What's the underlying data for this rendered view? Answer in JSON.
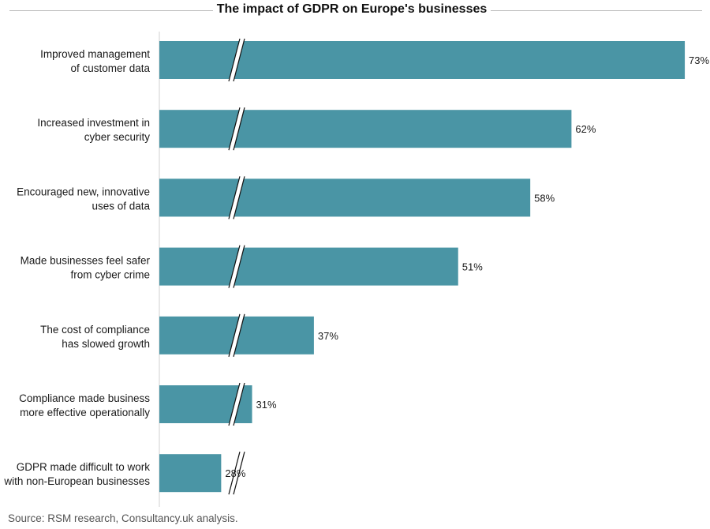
{
  "chart_data": {
    "type": "bar",
    "orientation": "horizontal",
    "title": "The impact of GDPR on Europe's businesses",
    "categories": [
      [
        "Improved management",
        "of customer data"
      ],
      [
        "Increased investment in",
        "cyber security"
      ],
      [
        "Encouraged new, innovative",
        "uses of data"
      ],
      [
        "Made businesses feel safer",
        "from cyber crime"
      ],
      [
        "The cost of compliance",
        "has slowed growth"
      ],
      [
        "Compliance made business",
        "more effective operationally"
      ],
      [
        "GDPR made difficult to work",
        "with non-European businesses"
      ]
    ],
    "values": [
      73,
      62,
      58,
      51,
      37,
      31,
      28
    ],
    "value_labels": [
      "73%",
      "62%",
      "58%",
      "51%",
      "37%",
      "31%",
      "28%"
    ],
    "axis_break": true,
    "bar_color": "#4a95a5",
    "source": "Source: RSM research, Consultancy.uk analysis."
  }
}
